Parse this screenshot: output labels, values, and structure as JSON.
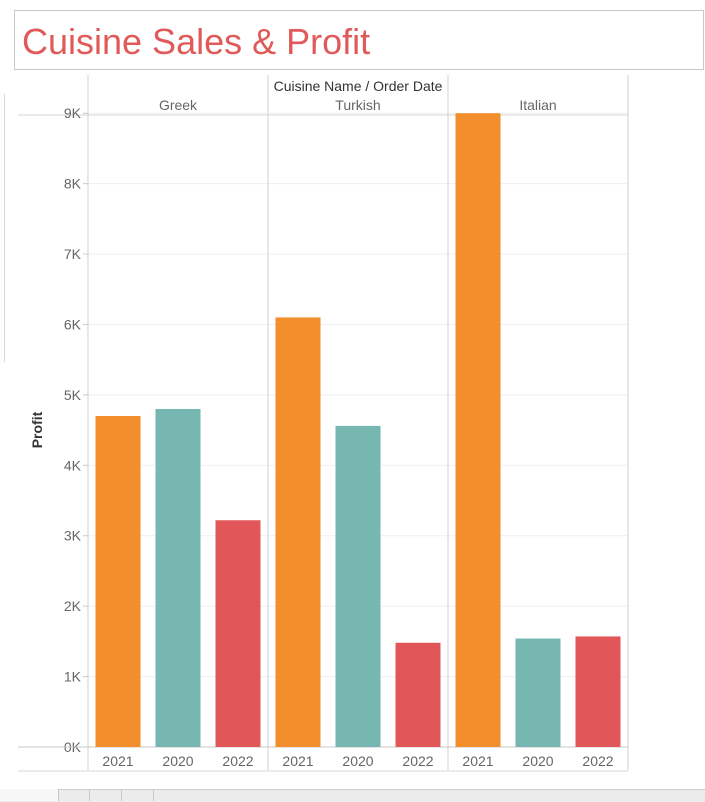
{
  "title": "Cuisine Sales & Profit",
  "chart_data": {
    "type": "bar",
    "header": "Cuisine Name  /  Order Date",
    "ylabel": "Profit",
    "ylim": [
      0,
      9500
    ],
    "yticks": [
      0,
      1000,
      2000,
      3000,
      4000,
      5000,
      6000,
      7000,
      8000,
      9000
    ],
    "ytick_labels": [
      "0K",
      "1K",
      "2K",
      "3K",
      "4K",
      "5K",
      "6K",
      "7K",
      "8K",
      "9K"
    ],
    "grid": true,
    "colors": {
      "2021": "#f28e2b",
      "2020": "#76b7b2",
      "2022": "#e15759"
    },
    "panels": [
      {
        "name": "Greek",
        "categories": [
          "2021",
          "2020",
          "2022"
        ],
        "values": [
          4700,
          4800,
          3220
        ]
      },
      {
        "name": "Turkish",
        "categories": [
          "2021",
          "2020",
          "2022"
        ],
        "values": [
          6100,
          4560,
          1480
        ]
      },
      {
        "name": "Italian",
        "categories": [
          "2021",
          "2020",
          "2022"
        ],
        "values": [
          9000,
          1540,
          1570
        ]
      }
    ]
  }
}
